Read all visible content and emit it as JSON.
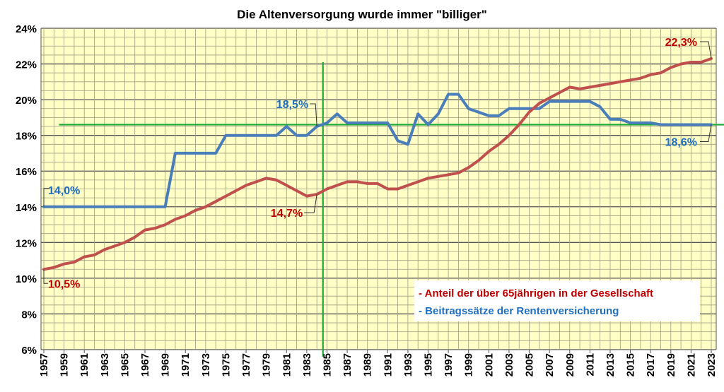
{
  "chart_data": {
    "type": "line",
    "title": "Die Altenversorgung wurde immer \"billiger\"",
    "xlabel": "",
    "ylabel": "",
    "ylim": [
      6,
      24
    ],
    "y_ticks": [
      "6%",
      "8%",
      "10%",
      "12%",
      "14%",
      "16%",
      "18%",
      "20%",
      "22%",
      "24%"
    ],
    "y_tick_values": [
      6,
      8,
      10,
      12,
      14,
      16,
      18,
      20,
      22,
      24
    ],
    "xlim": [
      1957,
      2023
    ],
    "x_tick_labels": [
      "1957",
      "1959",
      "1961",
      "1963",
      "1965",
      "1967",
      "1969",
      "1971",
      "1973",
      "1975",
      "1977",
      "1979",
      "1981",
      "1983",
      "1985",
      "1987",
      "1989",
      "1991",
      "1993",
      "1995",
      "1997",
      "1999",
      "2001",
      "2003",
      "2005",
      "2007",
      "2009",
      "2011",
      "2013",
      "2015",
      "2017",
      "2019",
      "2021",
      "2023"
    ],
    "grid": true,
    "legend_position": "bottom-right",
    "series": [
      {
        "name": "- Anteil der über 65jährigen in der Gesellschaft",
        "color": "#c0504d",
        "text_color": "#c00000",
        "x_start": 1957,
        "values": [
          10.5,
          10.6,
          10.8,
          10.9,
          11.2,
          11.3,
          11.6,
          11.8,
          12.0,
          12.3,
          12.7,
          12.8,
          13.0,
          13.3,
          13.5,
          13.8,
          14.0,
          14.3,
          14.6,
          14.9,
          15.2,
          15.4,
          15.6,
          15.5,
          15.2,
          14.9,
          14.6,
          14.7,
          15.0,
          15.2,
          15.4,
          15.4,
          15.3,
          15.3,
          15.0,
          15.0,
          15.2,
          15.4,
          15.6,
          15.7,
          15.8,
          15.9,
          16.2,
          16.6,
          17.1,
          17.5,
          18.0,
          18.6,
          19.3,
          19.8,
          20.1,
          20.4,
          20.7,
          20.6,
          20.7,
          20.8,
          20.9,
          21.0,
          21.1,
          21.2,
          21.4,
          21.5,
          21.8,
          22.0,
          22.1,
          22.1,
          22.3
        ]
      },
      {
        "name": "- Beitragssätze der Rentenversicherung",
        "color": "#4a7ebb",
        "text_color": "#1f6fc0",
        "x_start": 1957,
        "values": [
          14,
          14,
          14,
          14,
          14,
          14,
          14,
          14,
          14,
          14,
          14,
          14,
          14,
          17,
          17,
          17,
          17,
          17,
          18,
          18,
          18,
          18,
          18,
          18,
          18.5,
          18,
          18,
          18.5,
          18.7,
          19.2,
          18.7,
          18.7,
          18.7,
          18.7,
          18.7,
          17.7,
          17.5,
          19.2,
          18.6,
          19.2,
          20.3,
          20.3,
          19.5,
          19.3,
          19.1,
          19.1,
          19.5,
          19.5,
          19.5,
          19.5,
          19.9,
          19.9,
          19.9,
          19.9,
          19.9,
          19.6,
          18.9,
          18.9,
          18.7,
          18.7,
          18.7,
          18.6,
          18.6,
          18.6,
          18.6,
          18.6,
          18.6
        ]
      }
    ],
    "reference_lines": {
      "color": "#1faa3a",
      "horizontal_value": 18.6,
      "vertical_year": 1984.6
    },
    "annotations": [
      {
        "text": "14,0%",
        "series": 1,
        "year": 1957,
        "value": 14.0
      },
      {
        "text": "10,5%",
        "series": 0,
        "year": 1957,
        "value": 10.5
      },
      {
        "text": "18,5%",
        "series": 1,
        "year": 1984,
        "value": 18.5
      },
      {
        "text": "14,7%",
        "series": 0,
        "year": 1984,
        "value": 14.7
      },
      {
        "text": "22,3%",
        "series": 0,
        "year": 2023,
        "value": 22.3
      },
      {
        "text": "18,6%",
        "series": 1,
        "year": 2023,
        "value": 18.6
      }
    ]
  }
}
